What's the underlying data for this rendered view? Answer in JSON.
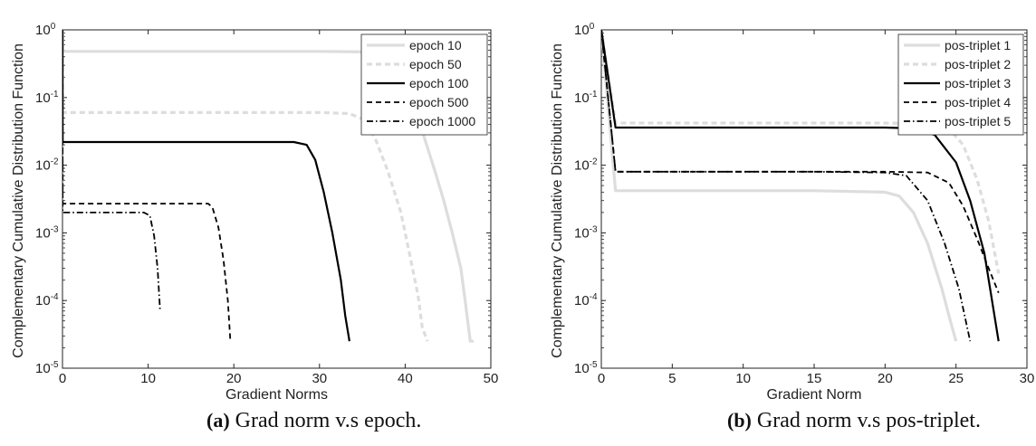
{
  "chart_data": [
    {
      "type": "line",
      "caption_label": "(a)",
      "caption_text": "Grad norm v.s epoch.",
      "xlabel": "Gradient Norms",
      "ylabel": "Complementary Cumulative Distribution Function",
      "xlim": [
        0,
        50
      ],
      "xticks": [
        "0",
        "10",
        "20",
        "30",
        "40",
        "50"
      ],
      "ylim": [
        1e-05,
        1
      ],
      "yscale": "log",
      "ytick_exponents": [
        "0",
        "-1",
        "-2",
        "-3",
        "-4",
        "-5"
      ],
      "legend_position": "top-right",
      "series": [
        {
          "name": "epoch 10",
          "color": "#dddddd",
          "style": "solid",
          "width": 3.2,
          "x": [
            0,
            0.02,
            0.3,
            10,
            20,
            30,
            37,
            38.3,
            39.5,
            40.5,
            41.5,
            42.5,
            43.5,
            44.5,
            45.5,
            46.5,
            47,
            47.6,
            48
          ],
          "y": [
            1,
            0.48,
            0.48,
            0.48,
            0.48,
            0.48,
            0.47,
            0.38,
            0.25,
            0.12,
            0.05,
            0.02,
            0.008,
            0.003,
            0.001,
            0.0003,
            0.0001,
            2.5e-05,
            2.5e-05
          ]
        },
        {
          "name": "epoch 50",
          "color": "#dddddd",
          "style": "dashed",
          "width": 3.2,
          "x": [
            0,
            0.02,
            0.3,
            10,
            20,
            30,
            33.5,
            35,
            36.5,
            38,
            39.5,
            40.5,
            41.5,
            42,
            42.6
          ],
          "y": [
            1,
            0.06,
            0.06,
            0.06,
            0.06,
            0.06,
            0.058,
            0.048,
            0.025,
            0.008,
            0.002,
            0.0005,
            0.00012,
            4e-05,
            2.5e-05
          ]
        },
        {
          "name": "epoch 100",
          "color": "#000000",
          "style": "solid",
          "width": 2.2,
          "x": [
            0,
            0.02,
            0.3,
            10,
            20,
            27,
            28.5,
            29.5,
            30.5,
            31.5,
            32.5,
            33,
            33.5
          ],
          "y": [
            1,
            0.022,
            0.022,
            0.022,
            0.022,
            0.022,
            0.02,
            0.012,
            0.004,
            0.001,
            0.0002,
            6e-05,
            2.5e-05
          ]
        },
        {
          "name": "epoch 500",
          "color": "#000000",
          "style": "dashed",
          "width": 1.8,
          "x": [
            0,
            0.02,
            0.3,
            10,
            17,
            17.5,
            18.2,
            18.8,
            19.3,
            19.6
          ],
          "y": [
            1,
            0.0027,
            0.0027,
            0.0027,
            0.0027,
            0.0024,
            0.0012,
            0.0004,
            0.0001,
            2.5e-05
          ]
        },
        {
          "name": "epoch 1000",
          "color": "#000000",
          "style": "dashdot",
          "width": 1.8,
          "x": [
            0,
            0.02,
            0.3,
            5,
            9.5,
            10.2,
            10.7,
            11.1,
            11.4
          ],
          "y": [
            1,
            0.002,
            0.002,
            0.002,
            0.002,
            0.0018,
            0.0009,
            0.0003,
            7e-05
          ]
        }
      ]
    },
    {
      "type": "line",
      "caption_label": "(b)",
      "caption_text": "Grad norm v.s pos-triplet.",
      "xlabel": "Gradient Norm",
      "ylabel": "Complementary Cumulative Distribution Function",
      "xlim": [
        0,
        30
      ],
      "xticks": [
        "0",
        "5",
        "10",
        "15",
        "20",
        "25",
        "30"
      ],
      "ylim": [
        1e-05,
        1
      ],
      "yscale": "log",
      "ytick_exponents": [
        "0",
        "-1",
        "-2",
        "-3",
        "-4",
        "-5"
      ],
      "legend_position": "top-right",
      "series": [
        {
          "name": "pos-triplet 1",
          "color": "#dddddd",
          "style": "solid",
          "width": 3.2,
          "x": [
            0,
            1,
            5,
            10,
            15,
            20,
            21,
            22,
            23,
            24,
            24.6,
            25
          ],
          "y": [
            1,
            0.0042,
            0.0042,
            0.0042,
            0.0042,
            0.004,
            0.0035,
            0.002,
            0.0007,
            0.00015,
            5e-05,
            2.5e-05
          ]
        },
        {
          "name": "pos-triplet 2",
          "color": "#dddddd",
          "style": "dashed",
          "width": 3.2,
          "x": [
            0,
            1,
            5,
            10,
            15,
            20,
            23,
            24.5,
            25.5,
            26.5,
            27.3,
            28
          ],
          "y": [
            1,
            0.042,
            0.042,
            0.042,
            0.042,
            0.042,
            0.041,
            0.035,
            0.02,
            0.006,
            0.0015,
            0.00025
          ]
        },
        {
          "name": "pos-triplet 3",
          "color": "#000000",
          "style": "solid",
          "width": 2.2,
          "x": [
            0,
            1,
            5,
            10,
            15,
            20,
            22,
            23.5,
            25,
            26,
            27,
            28
          ],
          "y": [
            1,
            0.036,
            0.036,
            0.036,
            0.036,
            0.036,
            0.035,
            0.028,
            0.011,
            0.003,
            0.0005,
            2.5e-05
          ]
        },
        {
          "name": "pos-triplet 4",
          "color": "#000000",
          "style": "dashed",
          "width": 1.8,
          "x": [
            0,
            1,
            5,
            10,
            15,
            20,
            23,
            24.5,
            25.5,
            26.5,
            27.3,
            28
          ],
          "y": [
            1,
            0.008,
            0.008,
            0.008,
            0.008,
            0.008,
            0.0078,
            0.0055,
            0.0025,
            0.0008,
            0.0003,
            0.00013
          ]
        },
        {
          "name": "pos-triplet 5",
          "color": "#000000",
          "style": "dashdot",
          "width": 1.8,
          "x": [
            0,
            1,
            5,
            10,
            15,
            20,
            21.5,
            23,
            24.2,
            25.2,
            26
          ],
          "y": [
            1,
            0.008,
            0.008,
            0.008,
            0.008,
            0.0078,
            0.007,
            0.003,
            0.0007,
            0.00015,
            2.5e-05
          ]
        }
      ]
    }
  ]
}
